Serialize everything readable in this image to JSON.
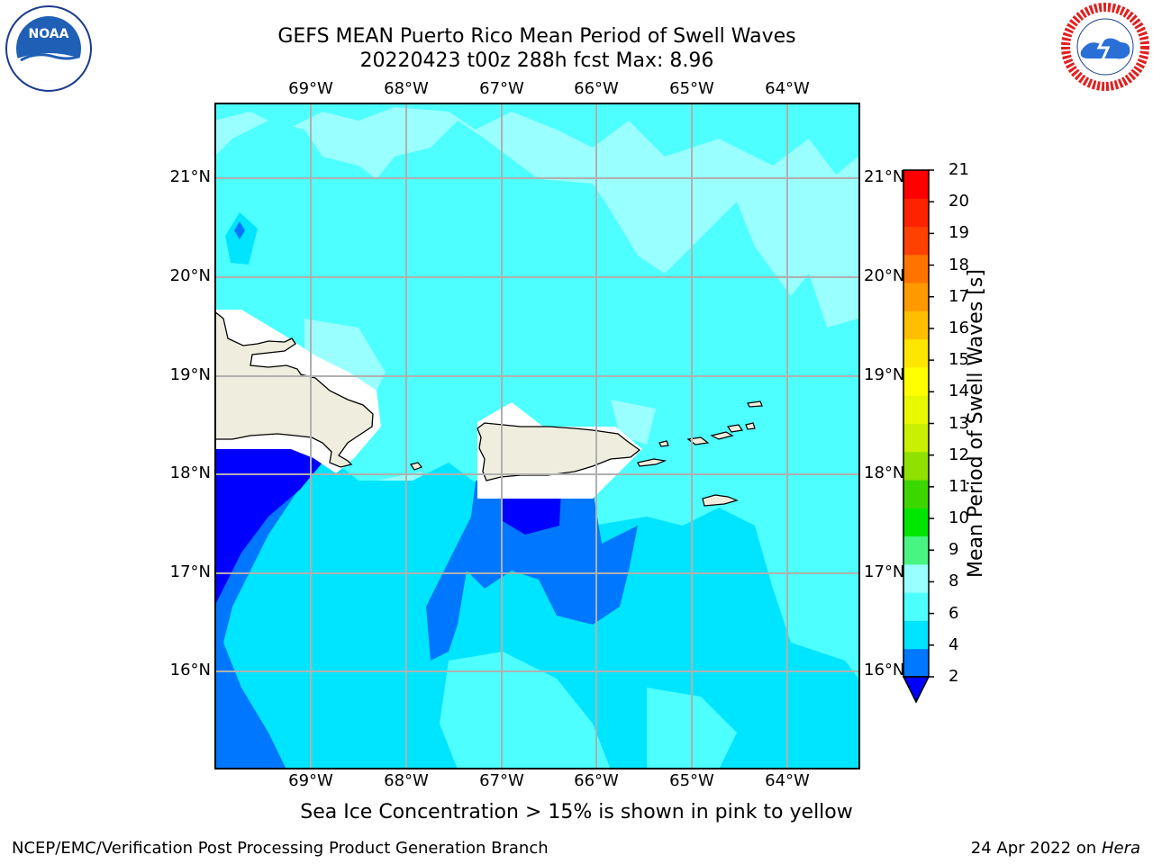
{
  "title_line1": "GEFS MEAN Puerto Rico Mean Period of Swell Waves",
  "title_line2": "20220423 t00z 288h fcst   Max: 8.96",
  "logos": {
    "left": "noaa-logo",
    "right": "national-weather-service-logo"
  },
  "map": {
    "extent": {
      "lon_min": -70.0,
      "lon_max": -63.25,
      "lat_min": 15.0,
      "lat_max": 21.8
    },
    "gridlines": true,
    "lon_labels": [
      "69°W",
      "68°W",
      "67°W",
      "66°W",
      "65°W",
      "64°W"
    ],
    "lat_labels": [
      "21°N",
      "20°N",
      "19°N",
      "18°N",
      "17°N",
      "16°N"
    ],
    "land_color": "#efedde",
    "ocean_main_color": "#4dffff"
  },
  "colorbar": {
    "label": "Mean Period of Swell Waves [s]",
    "ticks": [
      "21",
      "20",
      "19",
      "18",
      "17",
      "16",
      "15",
      "14",
      "13",
      "12",
      "11",
      "10",
      "9",
      "8",
      "6",
      "4",
      "2"
    ],
    "colors_bottom_to_top": [
      "#0077ff",
      "#00e5ff",
      "#4dffff",
      "#9affff",
      "#48f582",
      "#00e600",
      "#3cd600",
      "#90e000",
      "#c8f000",
      "#e8f800",
      "#ffff00",
      "#ffe600",
      "#ffbf00",
      "#ff9900",
      "#ff7300",
      "#ff4000",
      "#ff2200",
      "#ff0000"
    ],
    "extend_min_color": "#0000ff"
  },
  "sea_ice_note": "Sea Ice Concentration > 15% is shown in pink to yellow",
  "footer_left": "NCEP/EMC/Verification Post Processing Product Generation Branch",
  "footer_right_date": "24 Apr 2022 on ",
  "footer_right_host": "Hera"
}
